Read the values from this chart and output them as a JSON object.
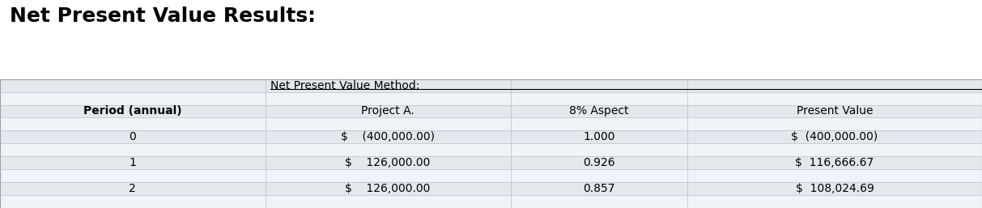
{
  "title": "Net Present Value Results:",
  "bg_color": "#ffffff",
  "title_fontsize": 18,
  "table_fontsize": 10,
  "title_color": "#000000",
  "text_color": "#000000",
  "stripe_dark": "#e4e8ed",
  "stripe_light": "#f0f3f7",
  "col_bounds": [
    0.0,
    0.27,
    0.52,
    0.7,
    1.0
  ],
  "rows": [
    {
      "cells": [
        "",
        "Net Present Value Method:",
        "",
        ""
      ],
      "aligns": [
        "center",
        "left",
        "center",
        "center"
      ],
      "bold": [
        false,
        false,
        false,
        false
      ],
      "underline": [
        false,
        true,
        false,
        false
      ],
      "bg": "dark"
    },
    {
      "cells": [
        "",
        "",
        "",
        ""
      ],
      "aligns": [
        "center",
        "center",
        "center",
        "center"
      ],
      "bold": [
        false,
        false,
        false,
        false
      ],
      "underline": [
        false,
        false,
        false,
        false
      ],
      "bg": "light"
    },
    {
      "cells": [
        "Period (annual)",
        "Project A.",
        "8% Aspect",
        "Present Value"
      ],
      "aligns": [
        "center",
        "center",
        "center",
        "center"
      ],
      "bold": [
        true,
        false,
        false,
        false
      ],
      "underline": [
        false,
        false,
        false,
        false
      ],
      "bg": "dark"
    },
    {
      "cells": [
        "",
        "",
        "",
        ""
      ],
      "aligns": [
        "center",
        "center",
        "center",
        "center"
      ],
      "bold": [
        false,
        false,
        false,
        false
      ],
      "underline": [
        false,
        false,
        false,
        false
      ],
      "bg": "light"
    },
    {
      "cells": [
        "0",
        "$    (400,000.00)",
        "1.000",
        "$  (400,000.00)"
      ],
      "aligns": [
        "center",
        "center",
        "center",
        "center"
      ],
      "bold": [
        false,
        false,
        false,
        false
      ],
      "underline": [
        false,
        false,
        false,
        false
      ],
      "bg": "dark"
    },
    {
      "cells": [
        "",
        "",
        "",
        ""
      ],
      "aligns": [
        "center",
        "center",
        "center",
        "center"
      ],
      "bold": [
        false,
        false,
        false,
        false
      ],
      "underline": [
        false,
        false,
        false,
        false
      ],
      "bg": "light"
    },
    {
      "cells": [
        "1",
        "$    126,000.00",
        "0.926",
        "$  116,666.67"
      ],
      "aligns": [
        "center",
        "center",
        "center",
        "center"
      ],
      "bold": [
        false,
        false,
        false,
        false
      ],
      "underline": [
        false,
        false,
        false,
        false
      ],
      "bg": "dark"
    },
    {
      "cells": [
        "",
        "",
        "",
        ""
      ],
      "aligns": [
        "center",
        "center",
        "center",
        "center"
      ],
      "bold": [
        false,
        false,
        false,
        false
      ],
      "underline": [
        false,
        false,
        false,
        false
      ],
      "bg": "light"
    },
    {
      "cells": [
        "2",
        "$    126,000.00",
        "0.857",
        "$  108,024.69"
      ],
      "aligns": [
        "center",
        "center",
        "center",
        "center"
      ],
      "bold": [
        false,
        false,
        false,
        false
      ],
      "underline": [
        false,
        false,
        false,
        false
      ],
      "bg": "dark"
    },
    {
      "cells": [
        "",
        "",
        "",
        ""
      ],
      "aligns": [
        "center",
        "center",
        "center",
        "center"
      ],
      "bold": [
        false,
        false,
        false,
        false
      ],
      "underline": [
        false,
        false,
        false,
        false
      ],
      "bg": "light"
    }
  ]
}
